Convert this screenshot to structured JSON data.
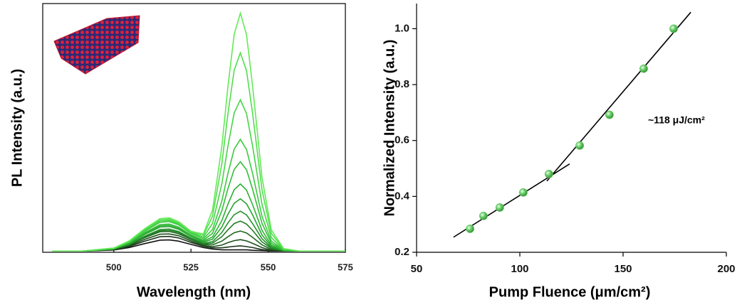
{
  "chart_data": [
    {
      "type": "line",
      "x_label": "Wavelength (nm)",
      "y_label": "PL Intensity (a.u.)",
      "xlim": [
        477,
        575
      ],
      "xticks": [
        500,
        525,
        550,
        575
      ],
      "ylim": [
        -0.5,
        100
      ],
      "x": [
        480,
        490,
        500,
        505,
        510,
        515,
        518,
        521,
        525,
        529,
        532,
        535,
        537,
        539,
        541,
        543,
        545,
        548,
        551,
        555,
        560,
        570,
        575
      ],
      "series": [
        {
          "color": "#111111",
          "values": [
            0,
            0,
            0.4,
            1.4,
            3,
            4.4,
            4.5,
            4,
            2.7,
            1.4,
            0.8,
            0.5,
            0.5,
            0.5,
            0.5,
            0.5,
            0.3,
            0.2,
            0,
            0,
            0,
            0,
            0
          ]
        },
        {
          "color": "#1c361c",
          "values": [
            0,
            0,
            0.5,
            1.8,
            4,
            5.8,
            5.9,
            5.3,
            3.5,
            1.9,
            1.3,
            1.3,
            1.6,
            1.9,
            2.1,
            1.8,
            1.4,
            0.6,
            0.2,
            0,
            0,
            0,
            0
          ]
        },
        {
          "color": "#1f4f1f",
          "values": [
            0,
            0,
            0.6,
            2.1,
            4.7,
            6.8,
            6.9,
            6.2,
            4.1,
            2.2,
            1.8,
            2.4,
            3.4,
            4.2,
            4.6,
            4.1,
            3.1,
            1.4,
            0.4,
            0,
            0,
            0,
            0
          ]
        },
        {
          "color": "#216821",
          "values": [
            0,
            0,
            0.7,
            2.4,
            5.4,
            7.8,
            7.9,
            7,
            4.7,
            2.6,
            2.5,
            4,
            5.8,
            7.4,
            8.1,
            7.3,
            5.5,
            2.5,
            0.7,
            0.1,
            0,
            0,
            0
          ]
        },
        {
          "color": "#227e25",
          "values": [
            0,
            0,
            0.8,
            2.6,
            5.7,
            8.2,
            8.4,
            7.5,
            5,
            2.9,
            3.2,
            5.8,
            8.6,
            11.1,
            12.1,
            10.9,
            8.3,
            3.7,
            1.1,
            0.1,
            0,
            0,
            0
          ]
        },
        {
          "color": "#23922a",
          "values": [
            0,
            0,
            0.8,
            2.7,
            6,
            8.7,
            8.9,
            7.9,
            5.3,
            3.2,
            3.8,
            7.5,
            11.4,
            14.7,
            16.1,
            14.6,
            11,
            5,
            1.4,
            0.2,
            0,
            0,
            0
          ]
        },
        {
          "color": "#28a22f",
          "values": [
            0,
            0,
            0.9,
            3,
            6.7,
            9.7,
            9.9,
            8.8,
            5.9,
            3.6,
            4.8,
            9.7,
            14.9,
            19.3,
            21.1,
            19.1,
            14.5,
            6.5,
            1.9,
            0.2,
            0,
            0,
            0
          ]
        },
        {
          "color": "#2eb034",
          "values": [
            0,
            0,
            0.9,
            3.2,
            7,
            10.2,
            10.4,
            9.2,
            6.2,
            4,
            5.7,
            12.3,
            19,
            24.8,
            27.1,
            24.6,
            18.6,
            8.4,
            2.4,
            0.3,
            0,
            0,
            0
          ]
        },
        {
          "color": "#34bd39",
          "values": [
            0,
            0,
            1,
            3.3,
            7.4,
            10.7,
            10.9,
            9.7,
            6.5,
            4.4,
            7.2,
            16.3,
            25.3,
            33,
            36.1,
            32.8,
            24.8,
            11.2,
            3.2,
            0.4,
            0,
            0,
            0
          ]
        },
        {
          "color": "#3cc93f",
          "values": [
            0,
            0,
            1.1,
            3.6,
            8,
            11.6,
            11.9,
            10.6,
            7.1,
            5,
            8.7,
            20.2,
            31.5,
            41.2,
            45.1,
            41,
            31.1,
            14,
            4.1,
            0.5,
            0,
            0,
            0
          ]
        },
        {
          "color": "#45d446",
          "values": [
            0,
            0,
            1.1,
            3.8,
            8.4,
            12.1,
            12.4,
            11,
            7.4,
            5.6,
            11.2,
            27.1,
            42.6,
            55.8,
            61.1,
            55.5,
            42.1,
            18.9,
            5.5,
            0.6,
            0,
            0,
            0
          ]
        },
        {
          "color": "#52de4c",
          "values": [
            0,
            0,
            1.2,
            3.9,
            8.7,
            12.6,
            12.9,
            11.4,
            7.7,
            6.3,
            14.1,
            35.3,
            55.7,
            73.1,
            80.1,
            72.8,
            55.2,
            24.8,
            7.2,
            0.8,
            0,
            0,
            0
          ]
        },
        {
          "color": "#62ea56",
          "values": [
            0,
            0,
            1.2,
            4.1,
            9,
            13.1,
            13.4,
            11.9,
            8,
            6.9,
            16.6,
            42.2,
            66.8,
            87.6,
            96.1,
            87.4,
            66.2,
            29.8,
            8.6,
            1,
            0,
            0,
            0
          ]
        }
      ]
    },
    {
      "type": "scatter",
      "x_label": "Pump Fluence (μm/cm²)",
      "y_label": "Normalized Intensity (a.u.)",
      "annotation": "~118 μJ/cm²",
      "xlim": [
        50,
        200
      ],
      "xticks": [
        50,
        100,
        150,
        200
      ],
      "ylim": [
        0.2,
        1.09
      ],
      "yticks": [
        0.2,
        0.4,
        0.6,
        0.8,
        {
          "value": 1,
          "label": "1.0"
        }
      ],
      "color": "#5cbf5c",
      "x": [
        75.9,
        82.4,
        90.3,
        101.7,
        114.1,
        129,
        143.4,
        160,
        174.5
      ],
      "values": [
        0.284,
        0.33,
        0.36,
        0.414,
        0.48,
        0.582,
        0.692,
        0.857,
        1.0
      ],
      "fit_lines": [
        {
          "x": [
            67.9,
            124.1
          ],
          "values": [
            0.254,
            0.516
          ]
        },
        {
          "x": [
            113.1,
            182.8
          ],
          "values": [
            0.455,
            1.059
          ]
        }
      ]
    }
  ]
}
